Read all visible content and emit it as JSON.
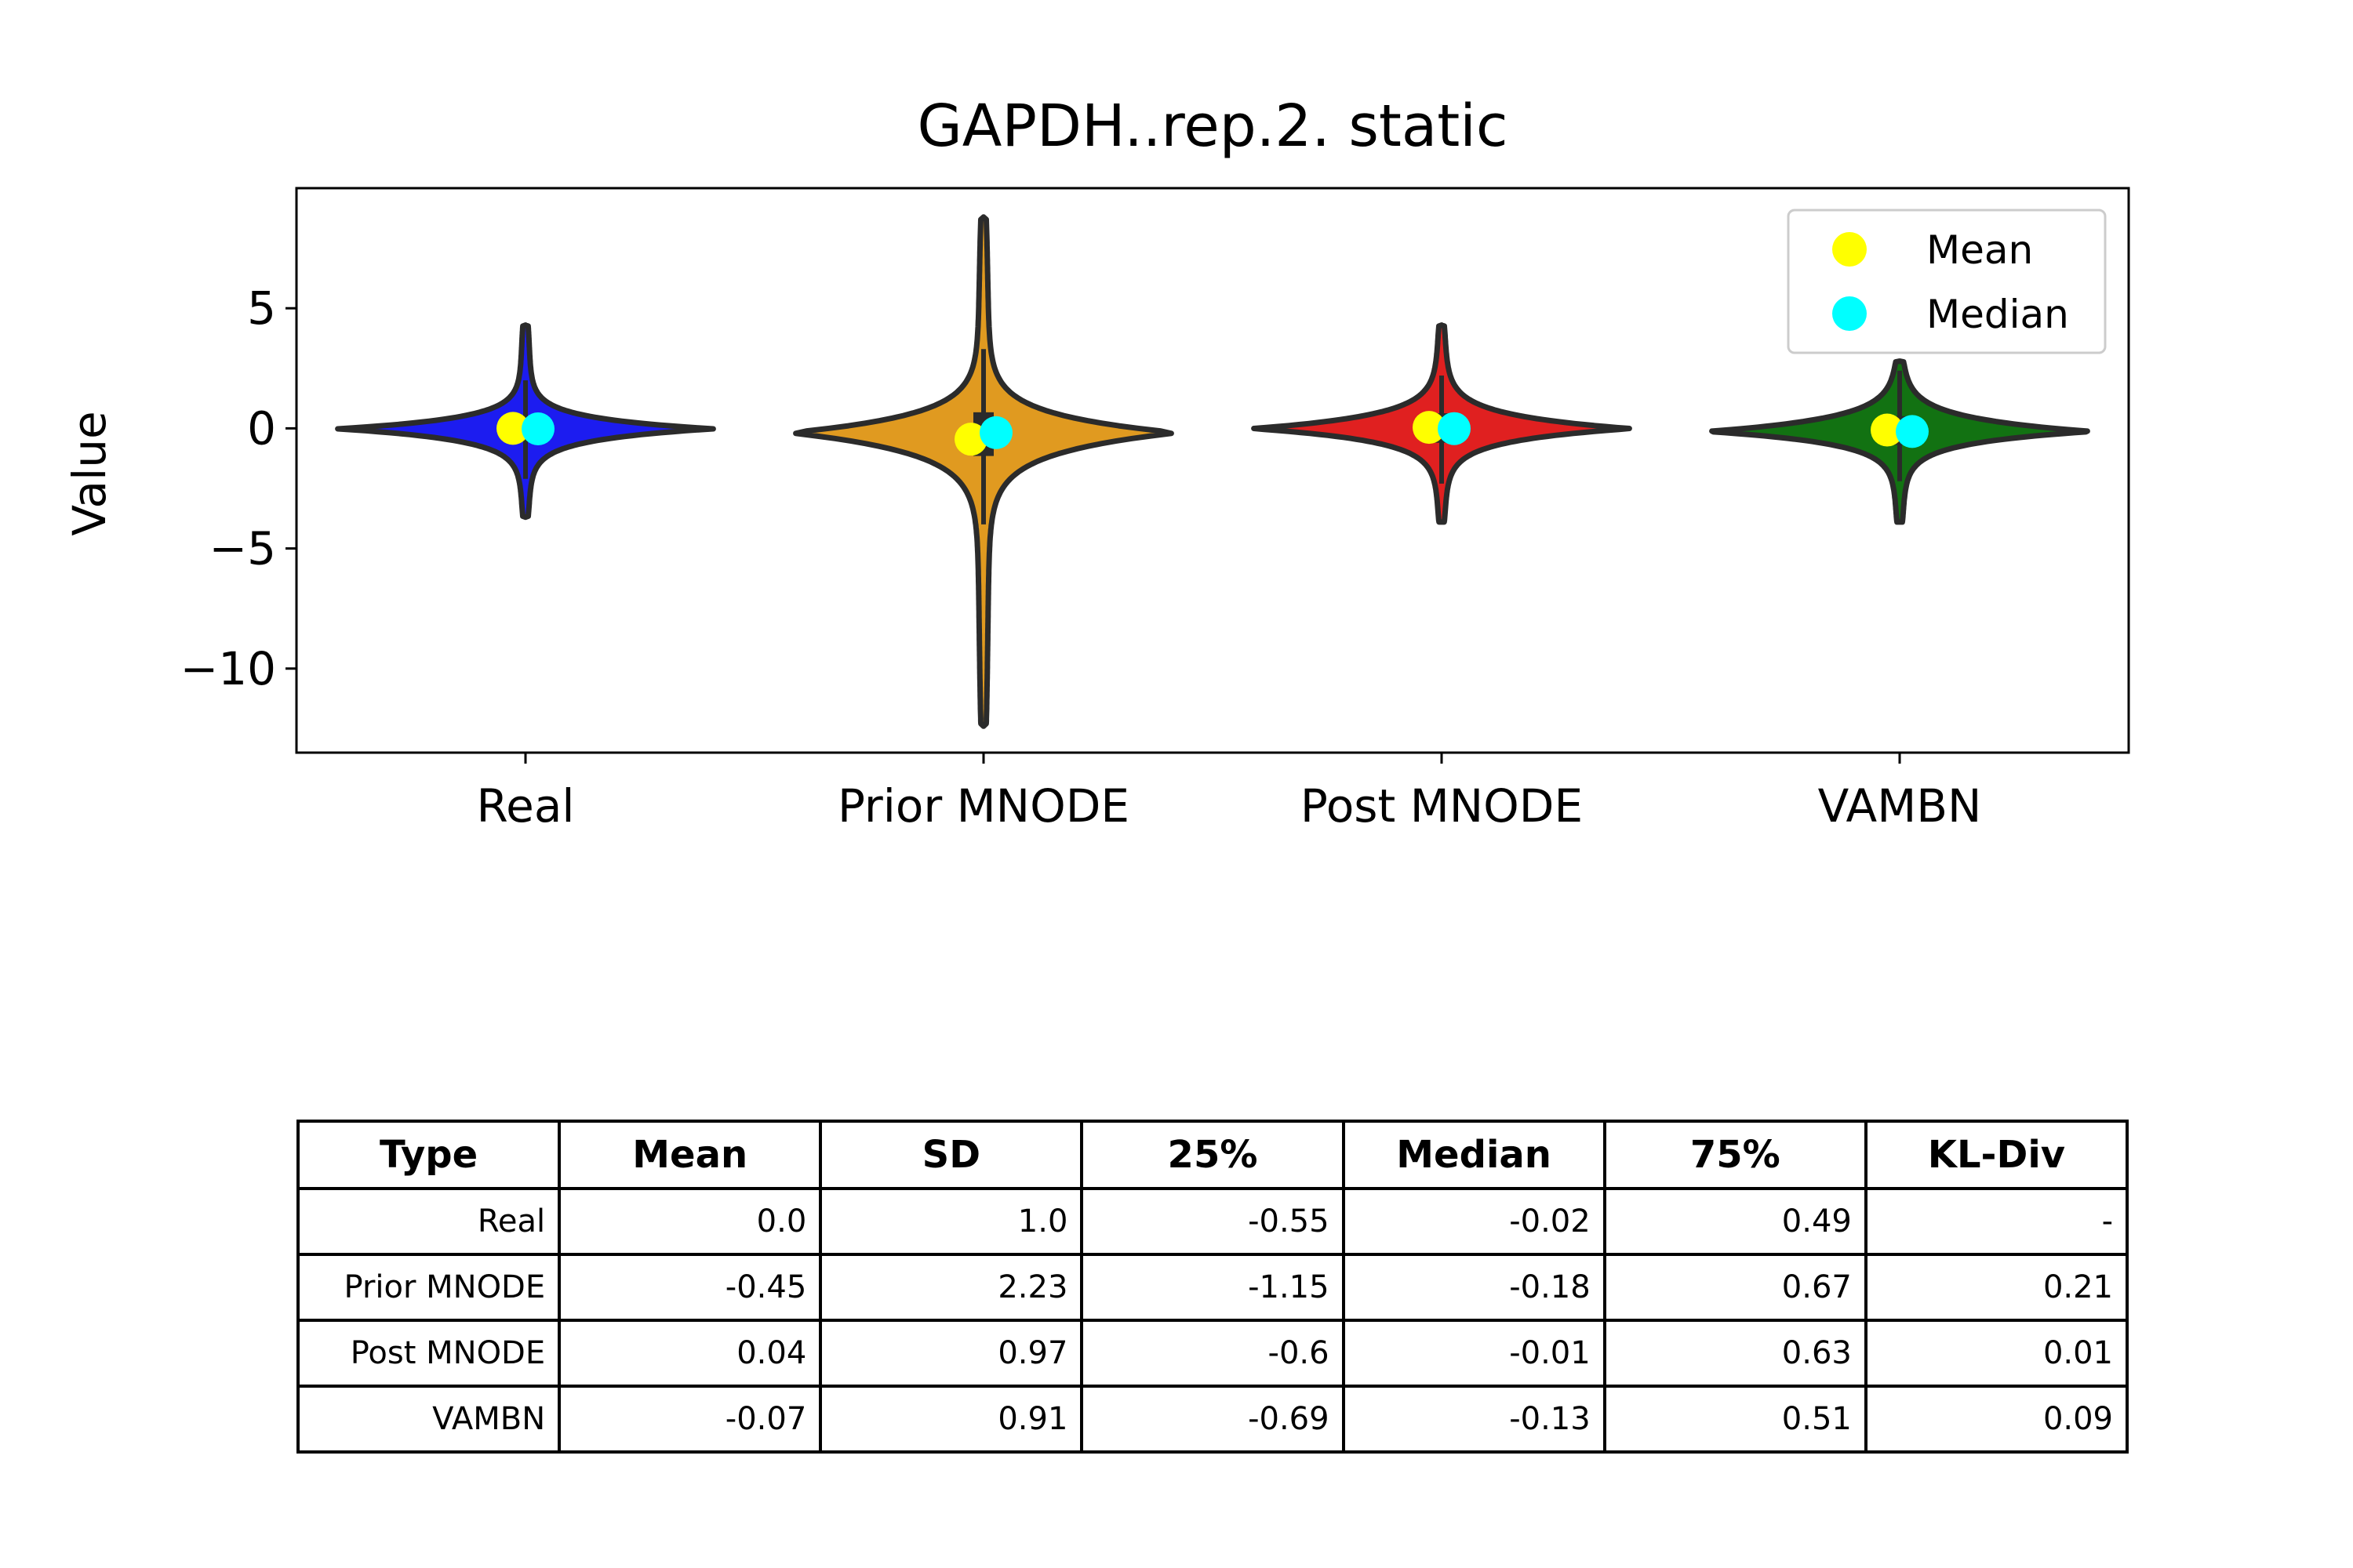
{
  "chart_data": {
    "type": "violin",
    "title": "GAPDH..rep.2. static",
    "xlabel": "",
    "ylabel": "Value",
    "ylim": [
      -13.5,
      10
    ],
    "yticks": [
      5,
      0,
      -5,
      -10
    ],
    "ytick_labels": [
      "5",
      "0",
      "−5",
      "−10"
    ],
    "categories": [
      "Real",
      "Prior MNODE",
      "Post MNODE",
      "VAMBN"
    ],
    "colors": [
      "#1c1cf0",
      "#e09a20",
      "#e02020",
      "#127212"
    ],
    "series": [
      {
        "category": "Real",
        "mean": 0.0,
        "median": -0.02,
        "q1": -0.55,
        "q3": 0.49,
        "whisker_low": -2.1,
        "whisker_high": 2.0,
        "min": -3.7,
        "max": 4.3
      },
      {
        "category": "Prior MNODE",
        "mean": -0.45,
        "median": -0.18,
        "q1": -1.15,
        "q3": 0.67,
        "whisker_low": -4.0,
        "whisker_high": 3.3,
        "min": -12.4,
        "max": 8.8
      },
      {
        "category": "Post MNODE",
        "mean": 0.04,
        "median": -0.01,
        "q1": -0.6,
        "q3": 0.63,
        "whisker_low": -2.3,
        "whisker_high": 2.2,
        "min": -3.9,
        "max": 4.3
      },
      {
        "category": "VAMBN",
        "mean": -0.07,
        "median": -0.13,
        "q1": -0.69,
        "q3": 0.51,
        "whisker_low": -2.2,
        "whisker_high": 2.4,
        "min": -3.9,
        "max": 2.8
      }
    ],
    "legend": {
      "position": "top-right",
      "entries": [
        {
          "label": "Mean",
          "color": "#ffff00"
        },
        {
          "label": "Median",
          "color": "#00ffff"
        }
      ]
    },
    "grid": false
  },
  "table": {
    "headers": [
      "Type",
      "Mean",
      "SD",
      "25%",
      "Median",
      "75%",
      "KL-Div"
    ],
    "rows": [
      [
        "Real",
        "0.0",
        "1.0",
        "-0.55",
        "-0.02",
        "0.49",
        "-"
      ],
      [
        "Prior MNODE",
        "-0.45",
        "2.23",
        "-1.15",
        "-0.18",
        "0.67",
        "0.21"
      ],
      [
        "Post MNODE",
        "0.04",
        "0.97",
        "-0.6",
        "-0.01",
        "0.63",
        "0.01"
      ],
      [
        "VAMBN",
        "-0.07",
        "0.91",
        "-0.69",
        "-0.13",
        "0.51",
        "0.09"
      ]
    ]
  }
}
